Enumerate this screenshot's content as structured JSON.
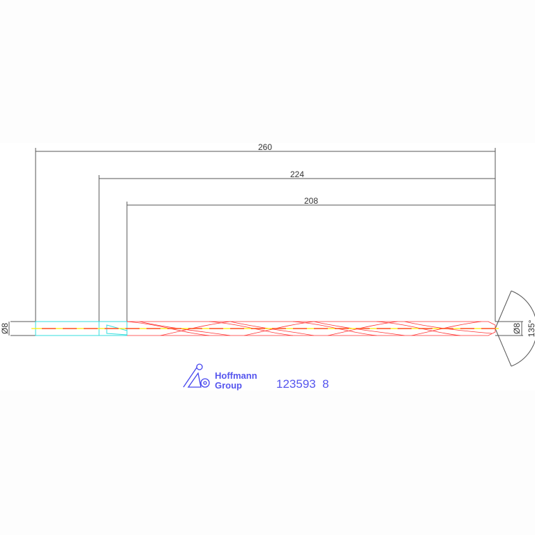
{
  "dimensions": {
    "overall_length": "260",
    "flute_to_shank_length": "224",
    "flute_length": "208",
    "shank_diameter": "Ø8",
    "tip_diameter": "Ø8",
    "point_angle": "135°"
  },
  "logo": {
    "line1": "Hoffmann",
    "line2": "Group"
  },
  "part_number": "123593  8",
  "colors": {
    "outline": "#ff3030",
    "shank": "#33dddd",
    "centerline": "#ffee00",
    "dimension": "#555555",
    "logo": "#4444ee"
  }
}
